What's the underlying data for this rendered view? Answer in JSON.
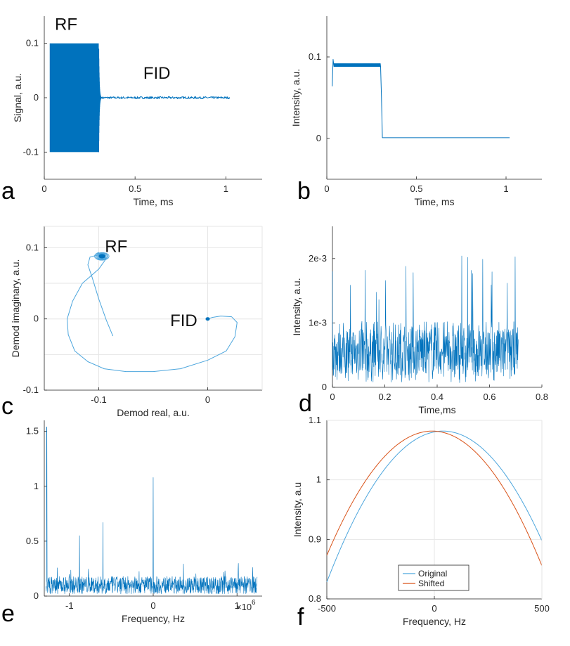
{
  "colors": {
    "primary": "#0072BD",
    "light_blue": "#4DA6DD",
    "orange": "#D95319",
    "axis": "#262626",
    "grid": "#e6e6e6"
  },
  "chart_data": [
    {
      "panel": "a",
      "type": "line",
      "xlabel": "Time, ms",
      "ylabel": "Signal, a.u.",
      "xlim": [
        0,
        1.2
      ],
      "ylim": [
        -0.15,
        0.15
      ],
      "xticks": [
        0,
        0.5,
        1
      ],
      "xticklabels": [
        "0",
        "0.5",
        "1"
      ],
      "yticks": [
        -0.1,
        0,
        0.1
      ],
      "yticklabels": [
        "-0.1",
        "0",
        "0.1"
      ],
      "annotations": [
        {
          "text": "RF",
          "x": 0.12,
          "y": 0.125
        },
        {
          "text": "FID",
          "x": 0.62,
          "y": 0.035
        }
      ],
      "series": [
        {
          "rf_block": [
            0.03,
            0.3,
            -0.1,
            0.1
          ],
          "decay_end": 0.32,
          "fid_end": 1.02,
          "noise": 0.002
        }
      ]
    },
    {
      "panel": "b",
      "type": "line",
      "xlabel": "Time, ms",
      "ylabel": "Intensity, a.u.",
      "xlim": [
        0,
        1.2
      ],
      "ylim": [
        -0.05,
        0.15
      ],
      "xticks": [
        0,
        0.5,
        1
      ],
      "xticklabels": [
        "0",
        "0.5",
        "1"
      ],
      "yticks": [
        0,
        0.1
      ],
      "yticklabels": [
        "0",
        "0.1"
      ],
      "series": [
        {
          "x": [
            0.03,
            0.035,
            0.04,
            0.3,
            0.305,
            0.31,
            1.02
          ],
          "y": [
            0.064,
            0.097,
            0.09,
            0.09,
            0.05,
            0.001,
            0.001
          ]
        }
      ]
    },
    {
      "panel": "c",
      "type": "line",
      "xlabel": "Demod real, a.u.",
      "ylabel": "Demod imaginary, a.u.",
      "xlim": [
        -0.15,
        0.05
      ],
      "ylim": [
        -0.1,
        0.13
      ],
      "grid": true,
      "xticks": [
        -0.1,
        0
      ],
      "xticklabels": [
        "-0.1",
        "0"
      ],
      "yticks": [
        -0.1,
        0,
        0.1
      ],
      "yticklabels": [
        "-0.1",
        "0",
        "0.1"
      ],
      "annotations": [
        {
          "text": "RF",
          "x": -0.084,
          "y": 0.094
        },
        {
          "text": "FID",
          "x": -0.022,
          "y": -0.01
        }
      ],
      "series": [
        {
          "x": [
            -0.087,
            -0.093,
            -0.1,
            -0.106,
            -0.11,
            -0.108,
            -0.1,
            -0.093,
            -0.1,
            -0.115,
            -0.124,
            -0.129,
            -0.128,
            -0.122,
            -0.11,
            -0.095,
            -0.075,
            -0.05,
            -0.025,
            0,
            0.017,
            0.025,
            0.027,
            0.022,
            0.012,
            0.004,
            0
          ],
          "y": [
            -0.024,
            -0.002,
            0.028,
            0.058,
            0.076,
            0.087,
            0.09,
            0.085,
            0.07,
            0.05,
            0.025,
            0,
            -0.022,
            -0.045,
            -0.06,
            -0.07,
            -0.074,
            -0.074,
            -0.07,
            -0.058,
            -0.045,
            -0.025,
            -0.005,
            0.003,
            0.004,
            0.002,
            0
          ]
        }
      ]
    },
    {
      "panel": "d",
      "type": "line",
      "xlabel": "Time,ms",
      "ylabel": "Intensity, a.u.",
      "xlim": [
        0,
        0.8
      ],
      "ylim": [
        0,
        0.0025
      ],
      "xticks": [
        0,
        0.2,
        0.4,
        0.6,
        0.8
      ],
      "xticklabels": [
        "0",
        "0.2",
        "0.4",
        "0.6",
        "0.8"
      ],
      "yticks": [
        0,
        0.001,
        0.002
      ],
      "yticklabels": [
        "0",
        "1e-3",
        "2e-3"
      ],
      "series": [
        {
          "x_range": [
            0,
            0.71
          ],
          "mean": 0.00055,
          "spread": 0.0004,
          "max": 0.00205
        }
      ]
    },
    {
      "panel": "e",
      "type": "line",
      "xlabel": "Frequency, Hz",
      "x_multiplier_label": "×10",
      "x_multiplier_exp": "6",
      "xlim": [
        -1.3,
        1.3
      ],
      "ylim": [
        0,
        1.6
      ],
      "xticks": [
        -1,
        0,
        1
      ],
      "xticklabels": [
        "-1",
        "0",
        "1"
      ],
      "yticks": [
        0,
        0.5,
        1,
        1.5
      ],
      "yticklabels": [
        "0",
        "0.5",
        "1",
        "1.5"
      ],
      "series": [
        {
          "baseline_mean": 0.1,
          "peaks": [
            {
              "x": -1.27,
              "y": 1.54
            },
            {
              "x": -0.88,
              "y": 0.55
            },
            {
              "x": -0.6,
              "y": 0.67
            },
            {
              "x": 0,
              "y": 1.08
            }
          ]
        }
      ]
    },
    {
      "panel": "f",
      "type": "line",
      "xlabel": "Frequency, Hz",
      "ylabel": "Intensity, a.u",
      "xlim": [
        -500,
        500
      ],
      "ylim": [
        0.8,
        1.1
      ],
      "grid": true,
      "xticks": [
        -500,
        0,
        500
      ],
      "xticklabels": [
        "-500",
        "0",
        "500"
      ],
      "yticks": [
        0.8,
        0.9,
        1.0,
        1.1
      ],
      "yticklabels": [
        "0.8",
        "0.9",
        "1",
        "1.1"
      ],
      "legend": {
        "position": "bottom-center",
        "entries": [
          "Original",
          "Shifted"
        ]
      },
      "series": [
        {
          "name": "Original",
          "peak_x": 40,
          "peak_y": 1.082,
          "curvature": 8.7e-07,
          "color": "#4DA6DD"
        },
        {
          "name": "Shifted",
          "peak_x": -10,
          "peak_y": 1.082,
          "curvature": 8.7e-07,
          "color": "#D95319"
        }
      ]
    }
  ]
}
